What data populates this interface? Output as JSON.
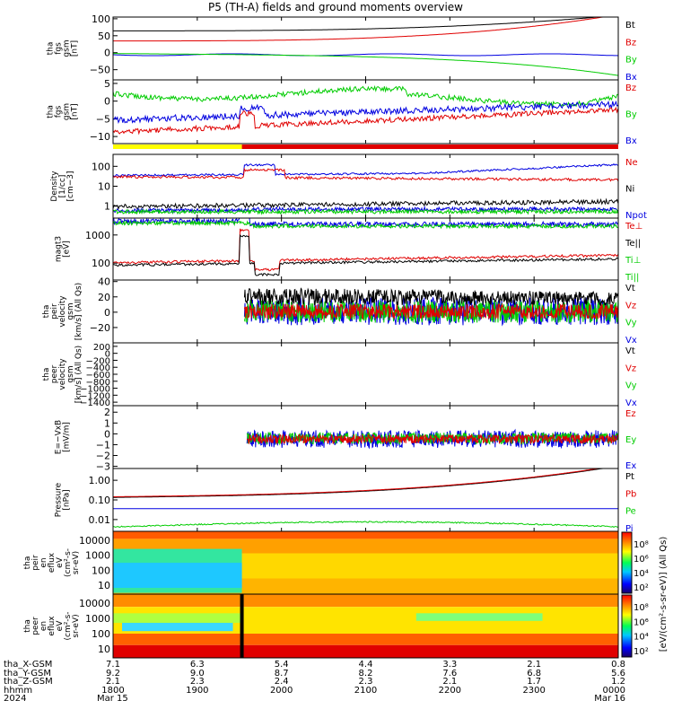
{
  "title": "P5 (TH-A) fields and ground moments overview",
  "colors": {
    "black": "#000000",
    "red": "#e00000",
    "green": "#00cc00",
    "blue": "#0000e0",
    "yellow": "#ffff00"
  },
  "chart_data": {
    "type": "line",
    "time_range": [
      "1800",
      "0000"
    ],
    "x_ticks": [
      {
        "time": "1800",
        "date": "Mar 15",
        "x_gsm": "7.1",
        "y_gsm": "9.2",
        "z_gsm": "2.1"
      },
      {
        "time": "1900",
        "date": "",
        "x_gsm": "6.3",
        "y_gsm": "9.0",
        "z_gsm": "2.3"
      },
      {
        "time": "2000",
        "date": "",
        "x_gsm": "5.4",
        "y_gsm": "8.7",
        "z_gsm": "2.4"
      },
      {
        "time": "2100",
        "date": "",
        "x_gsm": "4.4",
        "y_gsm": "8.2",
        "z_gsm": "2.3"
      },
      {
        "time": "2200",
        "date": "",
        "x_gsm": "3.3",
        "y_gsm": "7.6",
        "z_gsm": "2.1"
      },
      {
        "time": "2300",
        "date": "",
        "x_gsm": "2.1",
        "y_gsm": "6.8",
        "z_gsm": "1.7"
      },
      {
        "time": "0000",
        "date": "Mar 16",
        "x_gsm": "0.8",
        "y_gsm": "5.6",
        "z_gsm": "1.2"
      }
    ],
    "footer_labels": [
      "tha_X-GSM",
      "tha_Y-GSM",
      "tha_Z-GSM",
      "hhmm",
      "2024"
    ],
    "panels": [
      {
        "id": "fgs",
        "ylabel": [
          "tha",
          "fgs",
          "gsm",
          "[nT]"
        ],
        "ylim": [
          -80,
          105
        ],
        "yticks": [
          "100",
          "50",
          "0",
          "−50"
        ],
        "ytick_values": [
          100,
          50,
          0,
          -50
        ],
        "legend": [
          {
            "name": "Bt",
            "color": "black"
          },
          {
            "name": "Bz",
            "color": "red"
          },
          {
            "name": "By",
            "color": "green"
          },
          {
            "name": "Bx",
            "color": "blue"
          }
        ]
      },
      {
        "id": "fgs-dsl",
        "ylabel": [
          "tha",
          "fgs",
          "gsm",
          "[nT]"
        ],
        "ylim": [
          -12,
          6
        ],
        "yticks": [
          "5",
          "0",
          "−5",
          "−10"
        ],
        "ytick_values": [
          5,
          0,
          -5,
          -10
        ],
        "legend": [
          {
            "name": "Bz",
            "color": "red"
          },
          {
            "name": "By",
            "color": "green"
          },
          {
            "name": "Bx",
            "color": "blue"
          }
        ]
      },
      {
        "id": "density",
        "ylabel": [
          "Density",
          "[1/cc]",
          "[cm−3]"
        ],
        "yticks": [
          "100",
          "10",
          "1"
        ],
        "legend": [
          {
            "name": "Ne",
            "color": "red"
          },
          {
            "name": "Ni",
            "color": "black"
          },
          {
            "name": "Npot",
            "color": "blue"
          }
        ]
      },
      {
        "id": "temperature",
        "ylabel": [
          "magt3",
          "[eV]"
        ],
        "yticks": [
          "1000",
          "100"
        ],
        "legend": [
          {
            "name": "Te⊥",
            "color": "red"
          },
          {
            "name": "Te||",
            "color": "black"
          },
          {
            "name": "Ti⊥",
            "color": "green"
          },
          {
            "name": "Ti||",
            "color": "green"
          }
        ]
      },
      {
        "id": "peir-velocity",
        "ylabel": [
          "tha",
          "peir",
          "velocity",
          "gsm",
          "[km/s] (All Qs)"
        ],
        "ylim": [
          -40,
          42
        ],
        "yticks": [
          "40",
          "20",
          "0",
          "−20"
        ],
        "ytick_values": [
          40,
          20,
          0,
          -20
        ],
        "legend": [
          {
            "name": "Vt",
            "color": "black"
          },
          {
            "name": "Vz",
            "color": "red"
          },
          {
            "name": "Vy",
            "color": "green"
          },
          {
            "name": "Vx",
            "color": "blue"
          }
        ]
      },
      {
        "id": "peer-velocity",
        "ylabel": [
          "tha",
          "peer",
          "velocity",
          "gsm",
          "[km/s] (All Qs)"
        ],
        "ylim": [
          -1500,
          300
        ],
        "yticks": [
          "200",
          "0",
          "−200",
          "−400",
          "−600",
          "−800",
          "−1000",
          "−1200",
          "−1400"
        ],
        "ytick_values": [
          200,
          0,
          -200,
          -400,
          -600,
          -800,
          -1000,
          -1200,
          -1400
        ],
        "legend": [
          {
            "name": "Vt",
            "color": "black"
          },
          {
            "name": "Vz",
            "color": "red"
          },
          {
            "name": "Vy",
            "color": "green"
          },
          {
            "name": "Vx",
            "color": "blue"
          }
        ]
      },
      {
        "id": "efield",
        "ylabel": [
          "E=−VxB",
          "[mV/m]"
        ],
        "ylim": [
          -3.2,
          2.6
        ],
        "yticks": [
          "2",
          "1",
          "0",
          "−1",
          "−2",
          "−3"
        ],
        "ytick_values": [
          2,
          1,
          0,
          -1,
          -2,
          -3
        ],
        "legend": [
          {
            "name": "Ez",
            "color": "red"
          },
          {
            "name": "Ey",
            "color": "green"
          },
          {
            "name": "Ex",
            "color": "blue"
          }
        ]
      },
      {
        "id": "pressure",
        "ylabel": [
          "Pressure",
          "[nPa]"
        ],
        "yticks": [
          "1.00",
          "0.10",
          "0.01"
        ],
        "legend": [
          {
            "name": "Pt",
            "color": "black"
          },
          {
            "name": "Pb",
            "color": "red"
          },
          {
            "name": "Pe",
            "color": "green"
          },
          {
            "name": "Pi",
            "color": "blue"
          }
        ]
      },
      {
        "id": "peir-spectrogram",
        "ylabel": [
          "tha",
          "peir",
          "en",
          "eflux",
          "eV",
          "(cm²-s-",
          "sr-eV)"
        ],
        "yticks": [
          "10000",
          "1000",
          "100",
          "10"
        ],
        "colorbar_ticks": [
          "10⁸",
          "10⁶",
          "10⁴",
          "10²"
        ]
      },
      {
        "id": "peer-spectrogram",
        "ylabel": [
          "tha",
          "peer",
          "en",
          "eflux",
          "eV",
          "(cm²-s-",
          "sr-eV)"
        ],
        "yticks": [
          "10000",
          "1000",
          "100",
          "10"
        ],
        "colorbar_ticks": [
          "10⁸",
          "10⁶",
          "10⁴",
          "10²"
        ]
      }
    ],
    "colorbar_label": "[eV/(cm²-s-sr-eV)] (All Qs)"
  }
}
